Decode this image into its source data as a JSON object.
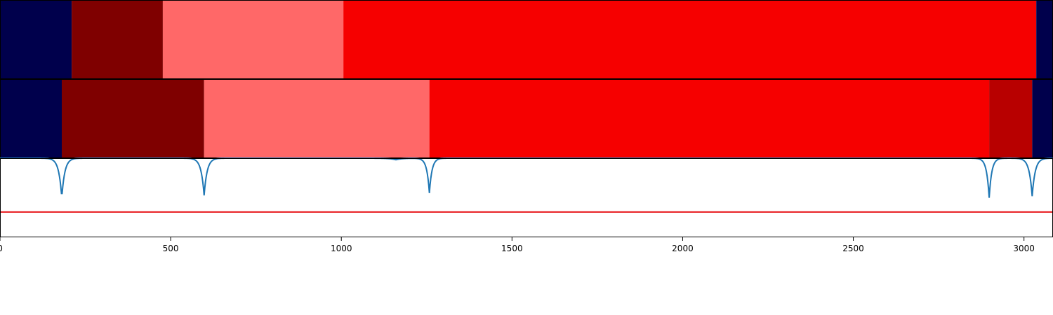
{
  "chart_data": [
    {
      "type": "segment-bar",
      "xlim": [
        0,
        3085
      ],
      "segments": [
        {
          "start": 0,
          "end": 210,
          "color": "#00004c"
        },
        {
          "start": 210,
          "end": 477,
          "color": "#7f0000"
        },
        {
          "start": 477,
          "end": 1006,
          "color": "#ff6868"
        },
        {
          "start": 1006,
          "end": 3036,
          "color": "#f60000"
        },
        {
          "start": 3036,
          "end": 3085,
          "color": "#00004c"
        }
      ]
    },
    {
      "type": "segment-bar",
      "xlim": [
        0,
        3085
      ],
      "segments": [
        {
          "start": 0,
          "end": 181,
          "color": "#00004c"
        },
        {
          "start": 181,
          "end": 598,
          "color": "#7f0000"
        },
        {
          "start": 598,
          "end": 1258,
          "color": "#ff6868"
        },
        {
          "start": 1258,
          "end": 2898,
          "color": "#f60000"
        },
        {
          "start": 2898,
          "end": 3024,
          "color": "#b80000"
        },
        {
          "start": 3024,
          "end": 3085,
          "color": "#00004c"
        }
      ]
    },
    {
      "type": "line",
      "xlim": [
        0,
        3085
      ],
      "ylim": [
        0,
        1
      ],
      "baseline": 1.0,
      "threshold": 0.32,
      "line_color": "#1f77b4",
      "threshold_color": "#e8171c",
      "dips": [
        {
          "x": 181,
          "min": 0.5,
          "width": 14
        },
        {
          "x": 598,
          "min": 0.53,
          "width": 14
        },
        {
          "x": 1160,
          "min": 0.98,
          "width": 28
        },
        {
          "x": 1258,
          "min": 0.56,
          "width": 12
        },
        {
          "x": 2898,
          "min": 0.5,
          "width": 12
        },
        {
          "x": 3024,
          "min": 0.52,
          "width": 14
        }
      ],
      "xticks": [
        0,
        500,
        1000,
        1500,
        2000,
        2500,
        3000
      ],
      "xtick_labels": [
        "0",
        "500",
        "1000",
        "1500",
        "2000",
        "2500",
        "3000"
      ]
    }
  ]
}
